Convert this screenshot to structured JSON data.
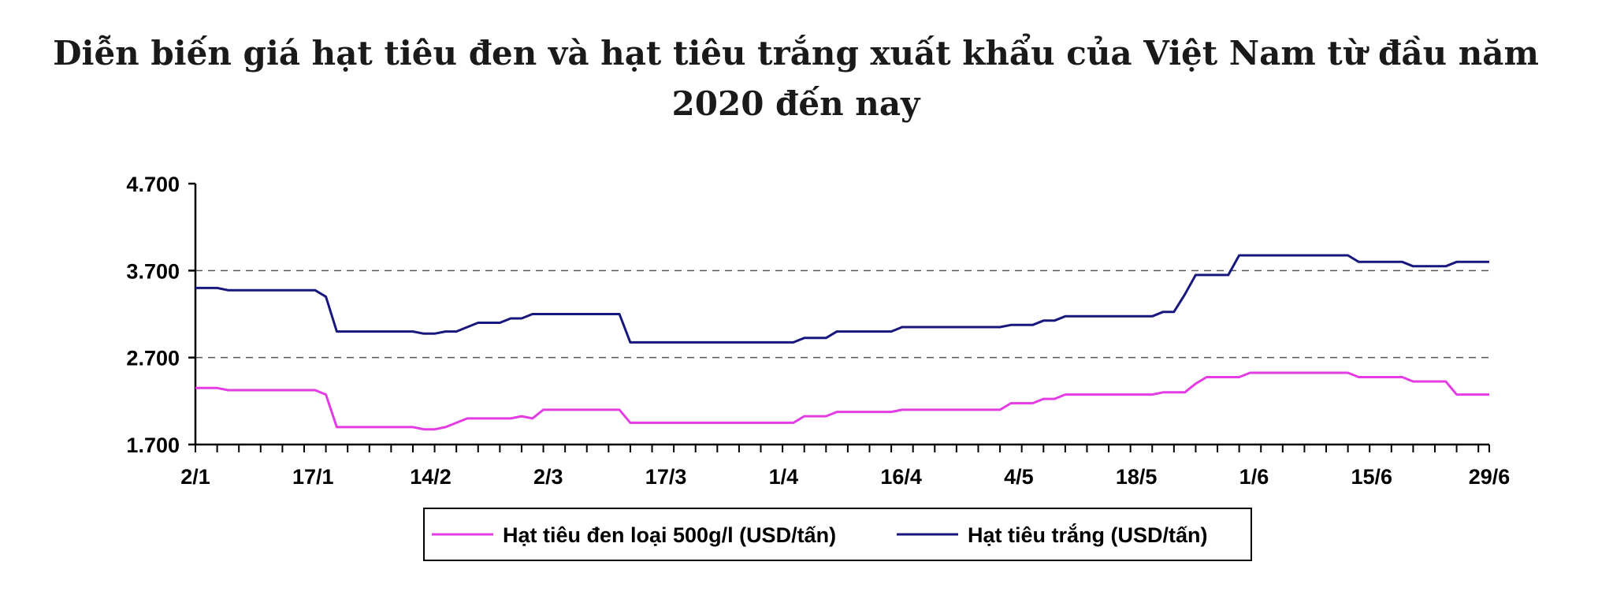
{
  "title": "Diễn biến giá hạt tiêu đen và hạt tiêu trắng xuất khẩu của Việt Nam từ đầu năm 2020 đến nay",
  "chart_data": {
    "type": "line",
    "title": "Diễn biến giá hạt tiêu đen và hạt tiêu trắng xuất khẩu của Việt Nam từ đầu năm 2020 đến nay",
    "xlabel": "",
    "ylabel": "",
    "ylim": [
      1700,
      4700
    ],
    "yticks": [
      "1.700",
      "2.700",
      "3.700",
      "4.700"
    ],
    "xtick_labels": [
      "2/1",
      "17/1",
      "14/2",
      "2/3",
      "17/3",
      "1/4",
      "16/4",
      "4/5",
      "18/5",
      "1/6",
      "15/6",
      "29/6"
    ],
    "grid": "dashed horizontal at 2.700 and 3.700",
    "legend_position": "bottom",
    "x_count": 120,
    "series": [
      {
        "name": "Hạt tiêu đen loại 500g/l (USD/tấn)",
        "color": "#e43ce4",
        "points": [
          [
            0,
            2350
          ],
          [
            2,
            2350
          ],
          [
            3,
            2325
          ],
          [
            11,
            2325
          ],
          [
            12,
            2275
          ],
          [
            13,
            1900
          ],
          [
            20,
            1900
          ],
          [
            21,
            1875
          ],
          [
            22,
            1875
          ],
          [
            23,
            1900
          ],
          [
            25,
            2000
          ],
          [
            29,
            2000
          ],
          [
            30,
            2025
          ],
          [
            31,
            2000
          ],
          [
            32,
            2100
          ],
          [
            38,
            2100
          ],
          [
            39,
            2100
          ],
          [
            40,
            1950
          ],
          [
            55,
            1950
          ],
          [
            56,
            2025
          ],
          [
            58,
            2025
          ],
          [
            59,
            2075
          ],
          [
            64,
            2075
          ],
          [
            65,
            2100
          ],
          [
            74,
            2100
          ],
          [
            75,
            2175
          ],
          [
            77,
            2175
          ],
          [
            78,
            2225
          ],
          [
            79,
            2225
          ],
          [
            80,
            2275
          ],
          [
            88,
            2275
          ],
          [
            89,
            2300
          ],
          [
            91,
            2300
          ],
          [
            92,
            2400
          ],
          [
            93,
            2475
          ],
          [
            96,
            2475
          ],
          [
            97,
            2525
          ],
          [
            106,
            2525
          ],
          [
            107,
            2475
          ],
          [
            111,
            2475
          ],
          [
            112,
            2425
          ],
          [
            115,
            2425
          ],
          [
            116,
            2275
          ],
          [
            119,
            2275
          ]
        ]
      },
      {
        "name": "Hạt tiêu trắng (USD/tấn)",
        "color": "#17177d",
        "points": [
          [
            0,
            3500
          ],
          [
            2,
            3500
          ],
          [
            3,
            3475
          ],
          [
            11,
            3475
          ],
          [
            12,
            3400
          ],
          [
            13,
            3000
          ],
          [
            20,
            3000
          ],
          [
            21,
            2975
          ],
          [
            22,
            2975
          ],
          [
            23,
            3000
          ],
          [
            24,
            3000
          ],
          [
            25,
            3050
          ],
          [
            26,
            3100
          ],
          [
            28,
            3100
          ],
          [
            29,
            3150
          ],
          [
            30,
            3150
          ],
          [
            31,
            3200
          ],
          [
            38,
            3200
          ],
          [
            39,
            3200
          ],
          [
            40,
            2875
          ],
          [
            55,
            2875
          ],
          [
            56,
            2925
          ],
          [
            58,
            2925
          ],
          [
            59,
            3000
          ],
          [
            64,
            3000
          ],
          [
            65,
            3050
          ],
          [
            74,
            3050
          ],
          [
            75,
            3075
          ],
          [
            77,
            3075
          ],
          [
            78,
            3125
          ],
          [
            79,
            3125
          ],
          [
            80,
            3175
          ],
          [
            88,
            3175
          ],
          [
            89,
            3225
          ],
          [
            90,
            3225
          ],
          [
            91,
            3425
          ],
          [
            92,
            3650
          ],
          [
            95,
            3650
          ],
          [
            96,
            3875
          ],
          [
            106,
            3875
          ],
          [
            107,
            3800
          ],
          [
            111,
            3800
          ],
          [
            112,
            3750
          ],
          [
            115,
            3750
          ],
          [
            116,
            3800
          ],
          [
            119,
            3800
          ]
        ]
      }
    ]
  }
}
